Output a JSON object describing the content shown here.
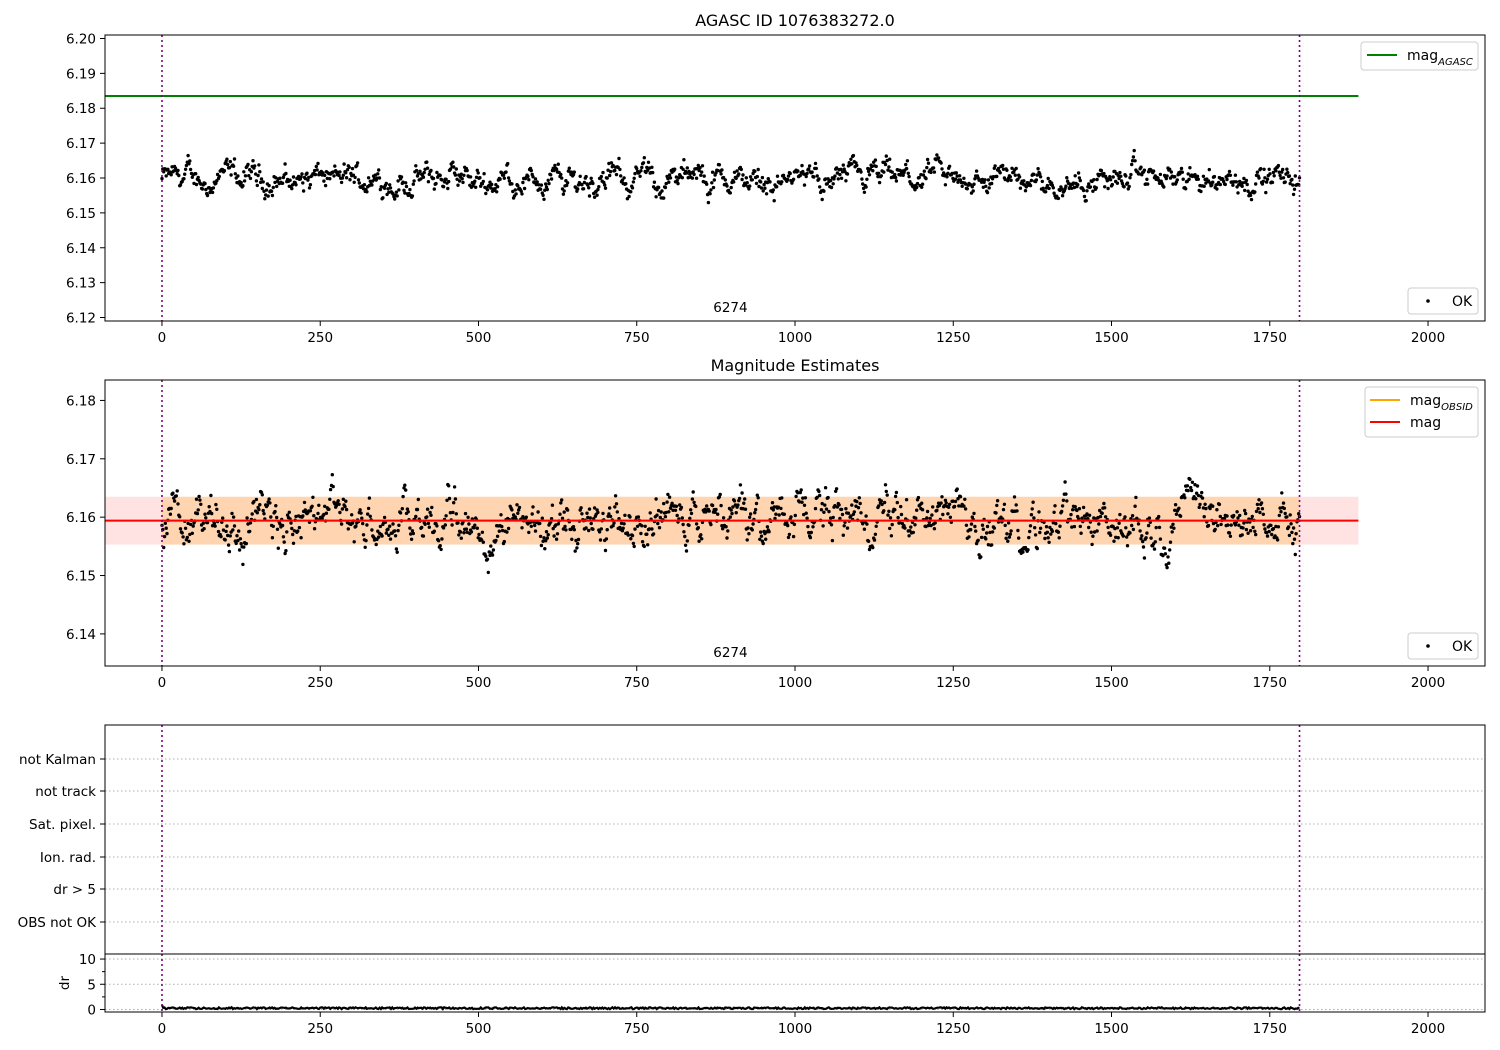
{
  "figure": {
    "panels": [
      {
        "key": "p1",
        "title": "AGASC ID 1076383272.0"
      },
      {
        "key": "p2",
        "title": "Magnitude Estimates"
      },
      {
        "key": "p3",
        "title": ""
      },
      {
        "key": "p4",
        "title": ""
      }
    ]
  },
  "chart_data": [
    {
      "name": "agasc-panel",
      "type": "scatter",
      "title": "AGASC ID 1076383272.0",
      "xlabel": "",
      "ylabel": "",
      "xlim": [
        -90,
        2090
      ],
      "ylim": [
        6.119,
        6.201
      ],
      "x_ticks": [
        0,
        250,
        500,
        750,
        1000,
        1250,
        1500,
        1750,
        2000
      ],
      "x_tick_labels": [
        "0",
        "250",
        "500",
        "750",
        "1000",
        "1250",
        "1500",
        "1750",
        "2000"
      ],
      "y_ticks": [
        6.12,
        6.13,
        6.14,
        6.15,
        6.16,
        6.17,
        6.18,
        6.19,
        6.2
      ],
      "y_tick_labels": [
        "6.12",
        "6.13",
        "6.14",
        "6.15",
        "6.16",
        "6.17",
        "6.18",
        "6.19",
        "6.20"
      ],
      "grid": false,
      "series": [
        {
          "name": "OK",
          "kind": "points",
          "color": "#000000",
          "center": 6.1595,
          "x_range": [
            0,
            1797
          ],
          "count": 1350
        },
        {
          "name": "mag",
          "subscript": "AGASC",
          "kind": "hline",
          "y": 6.1835,
          "x_range": [
            -90,
            1890
          ],
          "color": "#008000"
        }
      ],
      "vlines": [
        0,
        1797
      ],
      "vline_color": "#800080",
      "annotations": [
        {
          "text": "6274",
          "x": 898
        }
      ],
      "legends": [
        {
          "position": "top-right",
          "entries": [
            {
              "series": "mag",
              "subscript": "AGASC"
            }
          ]
        },
        {
          "position": "bottom-right",
          "entries": [
            {
              "series": "OK"
            }
          ]
        }
      ]
    },
    {
      "name": "magnitude-panel",
      "type": "scatter",
      "title": "Magnitude Estimates",
      "xlabel": "",
      "ylabel": "",
      "xlim": [
        -90,
        2090
      ],
      "ylim": [
        6.1345,
        6.1835
      ],
      "x_ticks": [
        0,
        250,
        500,
        750,
        1000,
        1250,
        1500,
        1750,
        2000
      ],
      "x_tick_labels": [
        "0",
        "250",
        "500",
        "750",
        "1000",
        "1250",
        "1500",
        "1750",
        "2000"
      ],
      "y_ticks": [
        6.14,
        6.15,
        6.16,
        6.17,
        6.18
      ],
      "y_tick_labels": [
        "6.14",
        "6.15",
        "6.16",
        "6.17",
        "6.18"
      ],
      "grid": false,
      "series": [
        {
          "name": "OK",
          "kind": "points",
          "color": "#000000",
          "center": 6.1595,
          "x_range": [
            0,
            1797
          ],
          "count": 1350
        },
        {
          "name": "mag",
          "subscript": "OBSID",
          "kind": "band",
          "y": 6.1594,
          "y_range": [
            6.1553,
            6.1635
          ],
          "x_range": [
            0,
            1797
          ],
          "color": "#ffa500"
        },
        {
          "name": "mag",
          "kind": "band",
          "y": 6.1594,
          "y_range": [
            6.1553,
            6.1635
          ],
          "x_range": [
            -90,
            1890
          ],
          "color": "#ff0000"
        }
      ],
      "vlines": [
        0,
        1797
      ],
      "vline_color": "#800080",
      "annotations": [
        {
          "text": "6274",
          "x": 898
        }
      ],
      "legends": [
        {
          "position": "top-right",
          "entries": [
            {
              "series": "mag",
              "subscript": "OBSID"
            },
            {
              "series": "mag"
            }
          ]
        },
        {
          "position": "bottom-right",
          "entries": [
            {
              "series": "OK"
            }
          ]
        }
      ]
    },
    {
      "name": "flags-panel",
      "type": "scatter",
      "xlim": [
        -90,
        2090
      ],
      "categories": [
        "OBS not OK",
        "dr > 5",
        "Ion. rad.",
        "Sat. pixel.",
        "not track",
        "not Kalman"
      ],
      "grid": true,
      "series": [],
      "vlines": [
        0,
        1797
      ],
      "vline_color": "#800080"
    },
    {
      "name": "dr-panel",
      "type": "line",
      "xlabel": "",
      "ylabel": "dr",
      "xlim": [
        -90,
        2090
      ],
      "ylim": [
        -0.5,
        11
      ],
      "x_ticks": [
        0,
        250,
        500,
        750,
        1000,
        1250,
        1500,
        1750,
        2000
      ],
      "x_tick_labels": [
        "0",
        "250",
        "500",
        "750",
        "1000",
        "1250",
        "1500",
        "1750",
        "2000"
      ],
      "y_ticks": [
        0,
        5,
        10
      ],
      "y_tick_labels": [
        "0",
        "5",
        "10"
      ],
      "grid": true,
      "series": [
        {
          "name": "dr",
          "kind": "points",
          "color": "#000000",
          "center": 0.25,
          "x_range": [
            0,
            1797
          ]
        }
      ],
      "vlines": [
        0,
        1797
      ],
      "vline_color": "#800080"
    }
  ]
}
